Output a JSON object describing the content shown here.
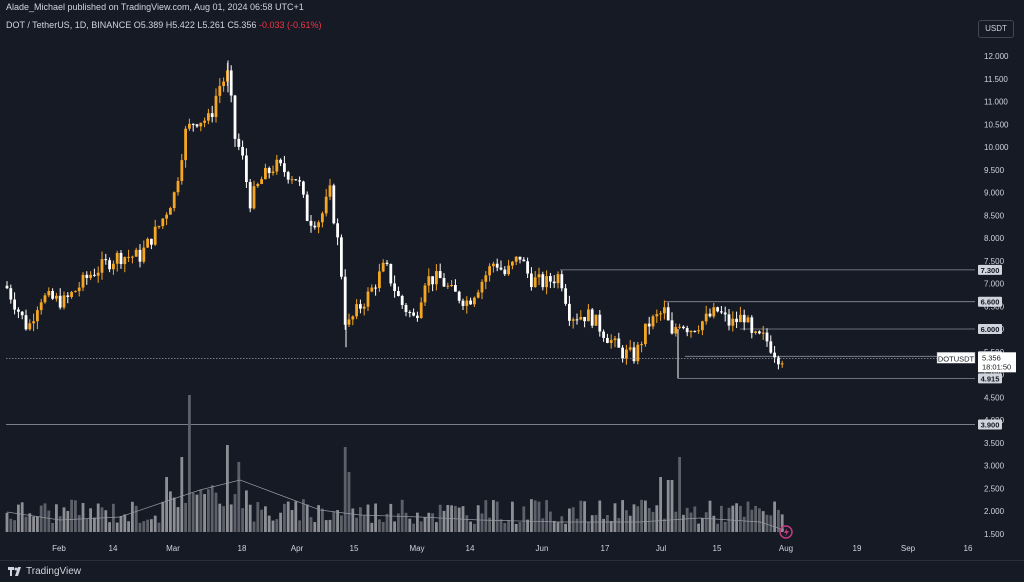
{
  "header": {
    "publisher": "Alade_Michael published on TradingView.com, Aug 01, 2024 06:58 UTC+1"
  },
  "legend": {
    "symbol": "DOT / TetherUS, 1D, BINANCE",
    "o_label": "O",
    "o_value": "5.389",
    "h_label": "H",
    "h_value": "5.422",
    "l_label": "L",
    "l_value": "5.261",
    "c_label": "C",
    "c_value": "5.356",
    "change": "-0.033 (-0.61%)"
  },
  "currency_button": "USDT",
  "price_axis": {
    "ticks": [
      "12.000",
      "11.500",
      "11.000",
      "10.500",
      "10.000",
      "9.500",
      "9.000",
      "8.500",
      "8.000",
      "7.500",
      "7.000",
      "6.500",
      "6.000",
      "5.500",
      "5.000",
      "4.500",
      "4.000",
      "3.500",
      "3.000",
      "2.500",
      "2.000",
      "1.500"
    ]
  },
  "level_tags": [
    {
      "label": "7.300",
      "value": 7.3
    },
    {
      "label": "6.600",
      "value": 6.6
    },
    {
      "label": "6.000",
      "value": 6.0
    },
    {
      "label": "5.400",
      "value": 5.4
    },
    {
      "label": "4.915",
      "value": 4.915
    },
    {
      "label": "3.900",
      "value": 3.9
    }
  ],
  "current_price": {
    "symbol_tag": "DOTUSDT",
    "price": "5.356",
    "countdown": "18:01:50",
    "value": 5.356
  },
  "time_axis": {
    "ticks": [
      "Feb",
      "14",
      "Mar",
      "18",
      "Apr",
      "15",
      "May",
      "14",
      "Jun",
      "17",
      "Jul",
      "15",
      "Aug",
      "19",
      "Sep",
      "16"
    ]
  },
  "footer": {
    "brand": "TradingView"
  },
  "colors": {
    "background": "#161a25",
    "up": "#f5a623",
    "down": "#ffffff",
    "volume": "#6b6e75",
    "grid": "#2a2e39",
    "text": "#d1d4dc",
    "accent": "#c23b80"
  },
  "chart_data": {
    "type": "candlestick",
    "symbol": "DOT / TetherUS",
    "interval": "1D",
    "exchange": "BINANCE",
    "y_range": [
      1.2,
      12.4
    ],
    "horizontal_levels": [
      7.3,
      6.6,
      6.0,
      5.4,
      4.915,
      3.9
    ],
    "close_series_approx": [
      {
        "date": "Jan 25",
        "close": 6.9
      },
      {
        "date": "Feb 1",
        "close": 6.7
      },
      {
        "date": "Feb 7",
        "close": 6.6
      },
      {
        "date": "Feb 14",
        "close": 7.3
      },
      {
        "date": "Feb 21",
        "close": 7.6
      },
      {
        "date": "Feb 28",
        "close": 8.5
      },
      {
        "date": "Mar 5",
        "close": 10.0
      },
      {
        "date": "Mar 11",
        "close": 11.0
      },
      {
        "date": "Mar 14",
        "close": 11.4
      },
      {
        "date": "Mar 18",
        "close": 8.9
      },
      {
        "date": "Mar 25",
        "close": 9.5
      },
      {
        "date": "Apr 1",
        "close": 8.6
      },
      {
        "date": "Apr 8",
        "close": 8.8
      },
      {
        "date": "Apr 13",
        "close": 6.3
      },
      {
        "date": "Apr 20",
        "close": 7.2
      },
      {
        "date": "Apr 27",
        "close": 6.8
      },
      {
        "date": "May 1",
        "close": 6.6
      },
      {
        "date": "May 7",
        "close": 7.0
      },
      {
        "date": "May 14",
        "close": 6.6
      },
      {
        "date": "May 21",
        "close": 7.5
      },
      {
        "date": "May 27",
        "close": 7.3
      },
      {
        "date": "Jun 1",
        "close": 7.0
      },
      {
        "date": "Jun 8",
        "close": 6.3
      },
      {
        "date": "Jun 17",
        "close": 5.7
      },
      {
        "date": "Jun 24",
        "close": 5.9
      },
      {
        "date": "Jul 1",
        "close": 6.4
      },
      {
        "date": "Jul 5",
        "close": 6.0
      },
      {
        "date": "Jul 15",
        "close": 6.2
      },
      {
        "date": "Jul 21",
        "close": 6.1
      },
      {
        "date": "Jul 27",
        "close": 5.7
      },
      {
        "date": "Aug 1",
        "close": 5.356
      }
    ]
  }
}
